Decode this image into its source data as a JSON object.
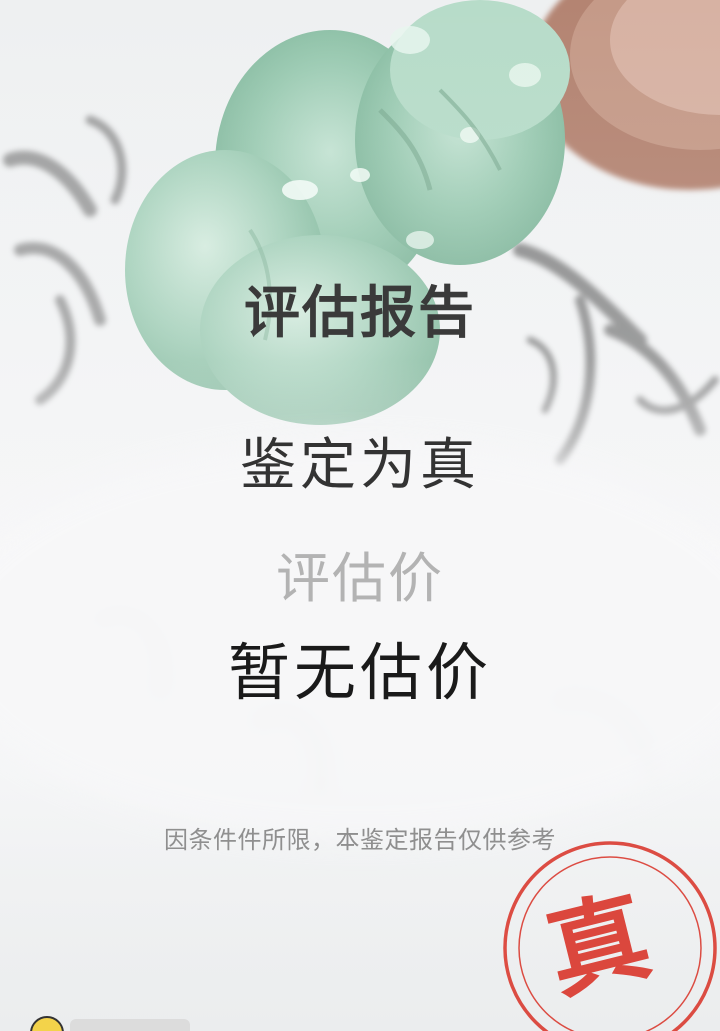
{
  "report": {
    "title": "评估报告",
    "result": "鉴定为真",
    "price_label": "评估价",
    "price_value": "暂无估价",
    "disclaimer": "因条件件所限，本鉴定报告仅供参考",
    "seal_char": "真"
  },
  "colors": {
    "seal_red": "#d93025",
    "jade_green": "#9ccbb3",
    "text_dark": "#1a1a1a",
    "text_muted": "#b3b3b3"
  },
  "icons": {
    "corner_badge": "avatar-badge-icon"
  }
}
